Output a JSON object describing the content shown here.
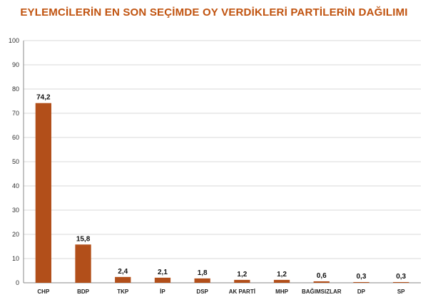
{
  "chart_data": {
    "type": "bar",
    "title": "EYLEMCİLERİN EN SON SEÇİMDE OY VERDİKLERİ PARTİLERİN DAĞILIMI",
    "xlabel": "",
    "ylabel": "",
    "categories": [
      "CHP",
      "BDP",
      "TKP",
      "İP",
      "DSP",
      "AK PARTİ",
      "MHP",
      "BAĞIMSIZLAR",
      "DP",
      "SP"
    ],
    "values": [
      74.2,
      15.8,
      2.4,
      2.1,
      1.8,
      1.2,
      1.2,
      0.6,
      0.3,
      0.3
    ],
    "data_labels": [
      "74,2",
      "15,8",
      "2,4",
      "2,1",
      "1,8",
      "1,2",
      "1,2",
      "0,6",
      "0,3",
      "0,3"
    ],
    "ylim": [
      0,
      100
    ],
    "yticks": [
      0,
      10,
      20,
      30,
      40,
      50,
      60,
      70,
      80,
      90,
      100
    ],
    "grid": true,
    "legend": "none",
    "bar_color": "#b24f1a",
    "title_color": "#c0520e",
    "grid_color": "#d9d9d9"
  }
}
